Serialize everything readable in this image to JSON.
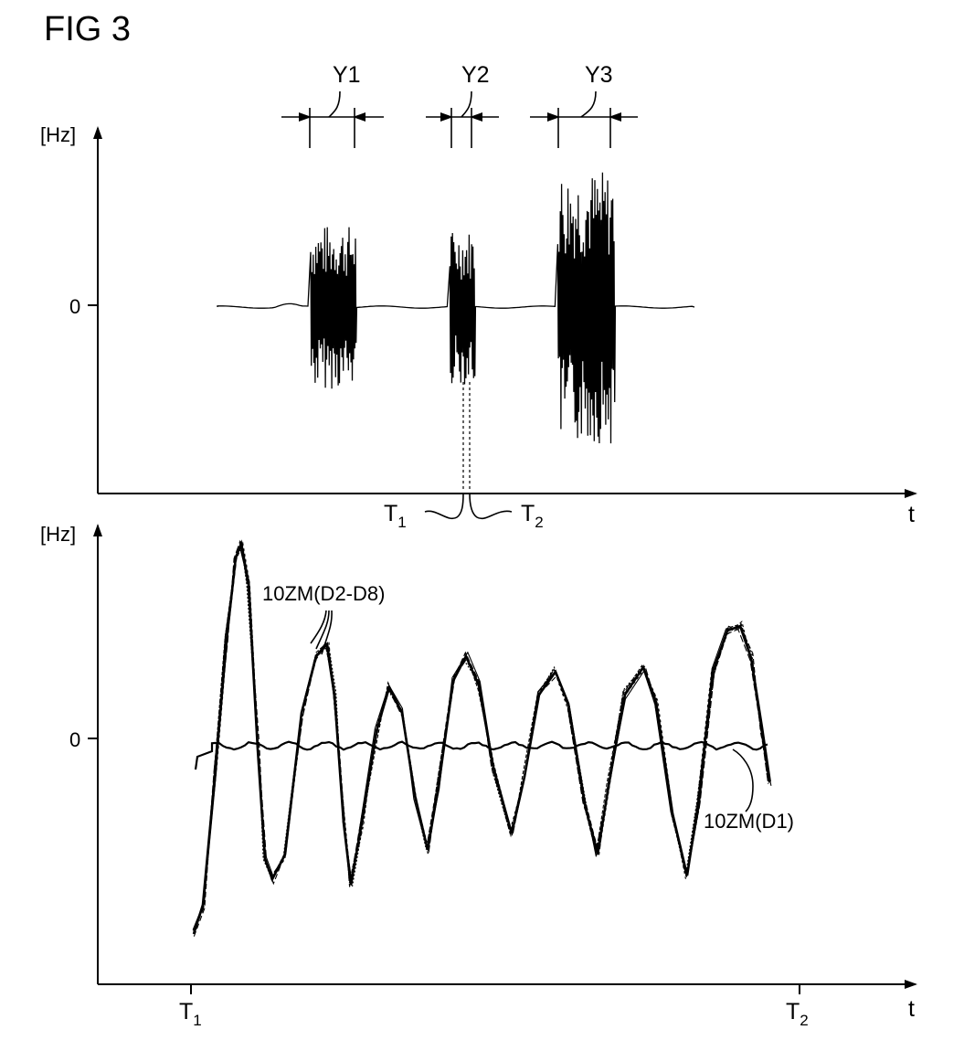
{
  "figure": {
    "title": "FIG 3"
  },
  "top_panel": {
    "y_unit": "[Hz]",
    "y_zero": "0",
    "x_label": "t",
    "intervals": [
      "Y1",
      "Y2",
      "Y3"
    ],
    "markers": {
      "t1": "T",
      "t1_sub": "1",
      "t2": "T",
      "t2_sub": "2"
    }
  },
  "bottom_panel": {
    "y_unit": "[Hz]",
    "y_zero": "0",
    "x_label": "t",
    "curve_labels": {
      "group": "10ZM(D2-D8)",
      "single": "10ZM(D1)"
    },
    "x_ticks": {
      "t1": "T",
      "t1_sub": "1",
      "t2": "T",
      "t2_sub": "2"
    }
  },
  "colors": {
    "ink": "#000000",
    "background": "#ffffff"
  }
}
